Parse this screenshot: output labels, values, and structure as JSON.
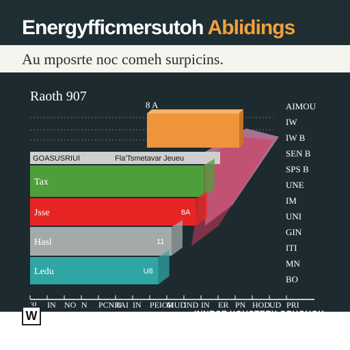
{
  "header": {
    "title_part1": "Energyfficmersutoh",
    "title_part2": "Ablidings",
    "subtitle": "Au mposrte noc comeh surpicins."
  },
  "chart_title": "Raoth 907",
  "corner_labels": {
    "top_small": "8 A",
    "top_right": "AIMOU"
  },
  "footer": {
    "logo": "W",
    "left_text": "",
    "right_text": "INNRSE YOUSTERY OPUOHOK"
  },
  "colors": {
    "background": "#1d2b30",
    "orange": "#f0943b",
    "green": "#4e9f3a",
    "red": "#e82525",
    "gray": "#a4aaaa",
    "teal": "#2fa6a4",
    "pink": "#c77ba0",
    "header_band": "#cfcfcf"
  },
  "chart_data": {
    "type": "bar",
    "orientation": "horizontal",
    "title": "Raoth 907",
    "header_row": {
      "left": "GOASUSRIUI",
      "right": "Fla'Tsmetavar Jeueu"
    },
    "categories": [
      "Tax",
      "Jsse",
      "Hasl",
      "Ledu"
    ],
    "values": [
      92,
      88,
      75,
      68
    ],
    "value_labels": [
      "",
      "8A",
      "11",
      "U8"
    ],
    "highlight_value": 100,
    "x_tick_labels": [
      "3I",
      "IN",
      "NO",
      "N",
      "PCNRAI",
      "JI",
      "IN",
      "PEIOR",
      "MUD",
      "IND",
      "IN",
      "ER",
      "PN",
      "HOD",
      "UD",
      "PRI"
    ],
    "right_axis_labels": [
      "AIMOU",
      "IW",
      "IW B",
      "SEN B",
      "SPS B",
      "UNE",
      "IM",
      "UNI",
      "GIN",
      "ITI",
      "MN",
      "BO"
    ],
    "xlim": [
      0,
      100
    ]
  }
}
